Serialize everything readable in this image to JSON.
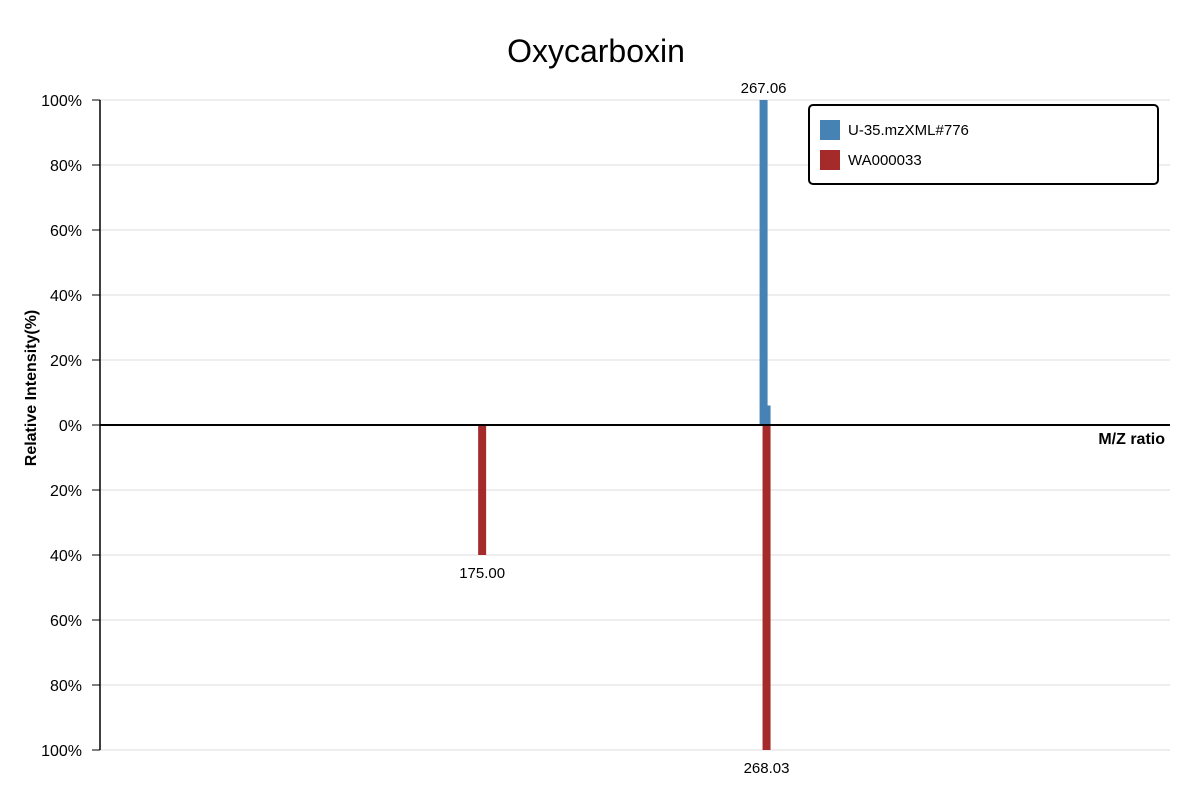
{
  "chart_data": {
    "type": "bar",
    "title": "Oxycarboxin",
    "xlabel": "M/Z ratio",
    "ylabel": "Relative Intensity(%)",
    "ylim_top": [
      0,
      100
    ],
    "ylim_bottom": [
      0,
      100
    ],
    "y_ticks_top": [
      "100%",
      "80%",
      "60%",
      "40%",
      "20%",
      "0%"
    ],
    "y_ticks_bottom": [
      "20%",
      "40%",
      "60%",
      "80%",
      "100%"
    ],
    "xlim": [
      50,
      400
    ],
    "grid": true,
    "legend_position": "top-right",
    "series": [
      {
        "name": "U-35.mzXML#776",
        "color": "#4682b4",
        "direction": "up",
        "peaks": [
          {
            "mz": 267.06,
            "intensity": 100,
            "label": "267.06"
          },
          {
            "mz": 268.03,
            "intensity": 6,
            "label": ""
          }
        ]
      },
      {
        "name": "WA000033",
        "color": "#a52a2a",
        "direction": "down",
        "peaks": [
          {
            "mz": 175.0,
            "intensity": 40,
            "label": "175.00"
          },
          {
            "mz": 268.03,
            "intensity": 100,
            "label": "268.03"
          }
        ]
      }
    ]
  }
}
